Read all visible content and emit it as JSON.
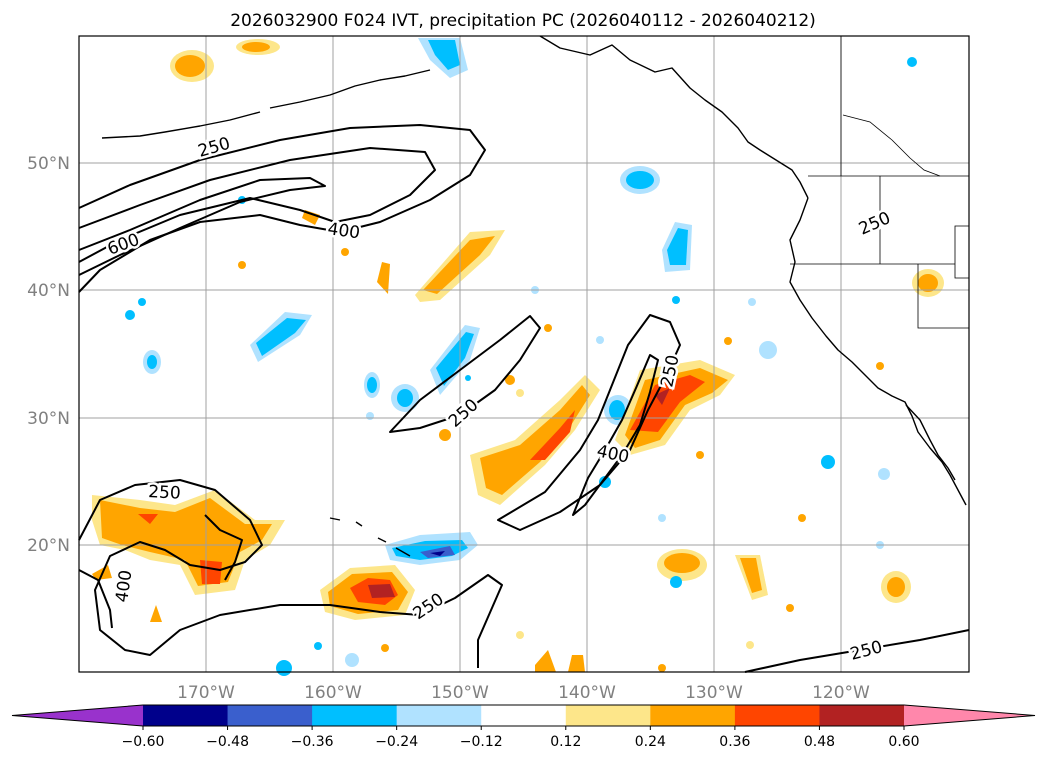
{
  "title": "2026032900 F024 IVT, precipitation PC (2026040112 - 2026040212)",
  "map": {
    "lat_ticks": [
      "50°N",
      "40°N",
      "30°N",
      "20°N"
    ],
    "lon_ticks": [
      "170°W",
      "160°W",
      "150°W",
      "140°W",
      "130°W",
      "120°W"
    ],
    "contour_labels": [
      "250",
      "600",
      "400",
      "250",
      "400",
      "250",
      "400",
      "250",
      "250",
      "250",
      "250"
    ]
  },
  "colorbar": {
    "colors": [
      "#9932cc",
      "#00008b",
      "#3a5fcd",
      "#00bfff",
      "#b0e2ff",
      "#ffffff",
      "#fde68a",
      "#ffa500",
      "#ff4500",
      "#b22222",
      "#ff87ab"
    ],
    "tick_labels": [
      "−0.60",
      "−0.48",
      "−0.36",
      "−0.24",
      "−0.12",
      "0.12",
      "0.24",
      "0.36",
      "0.48",
      "0.60"
    ]
  },
  "colors": {
    "grid": "#a0a0a0",
    "tick_text": "#808080",
    "contour": "#000000",
    "coast": "#000000"
  }
}
